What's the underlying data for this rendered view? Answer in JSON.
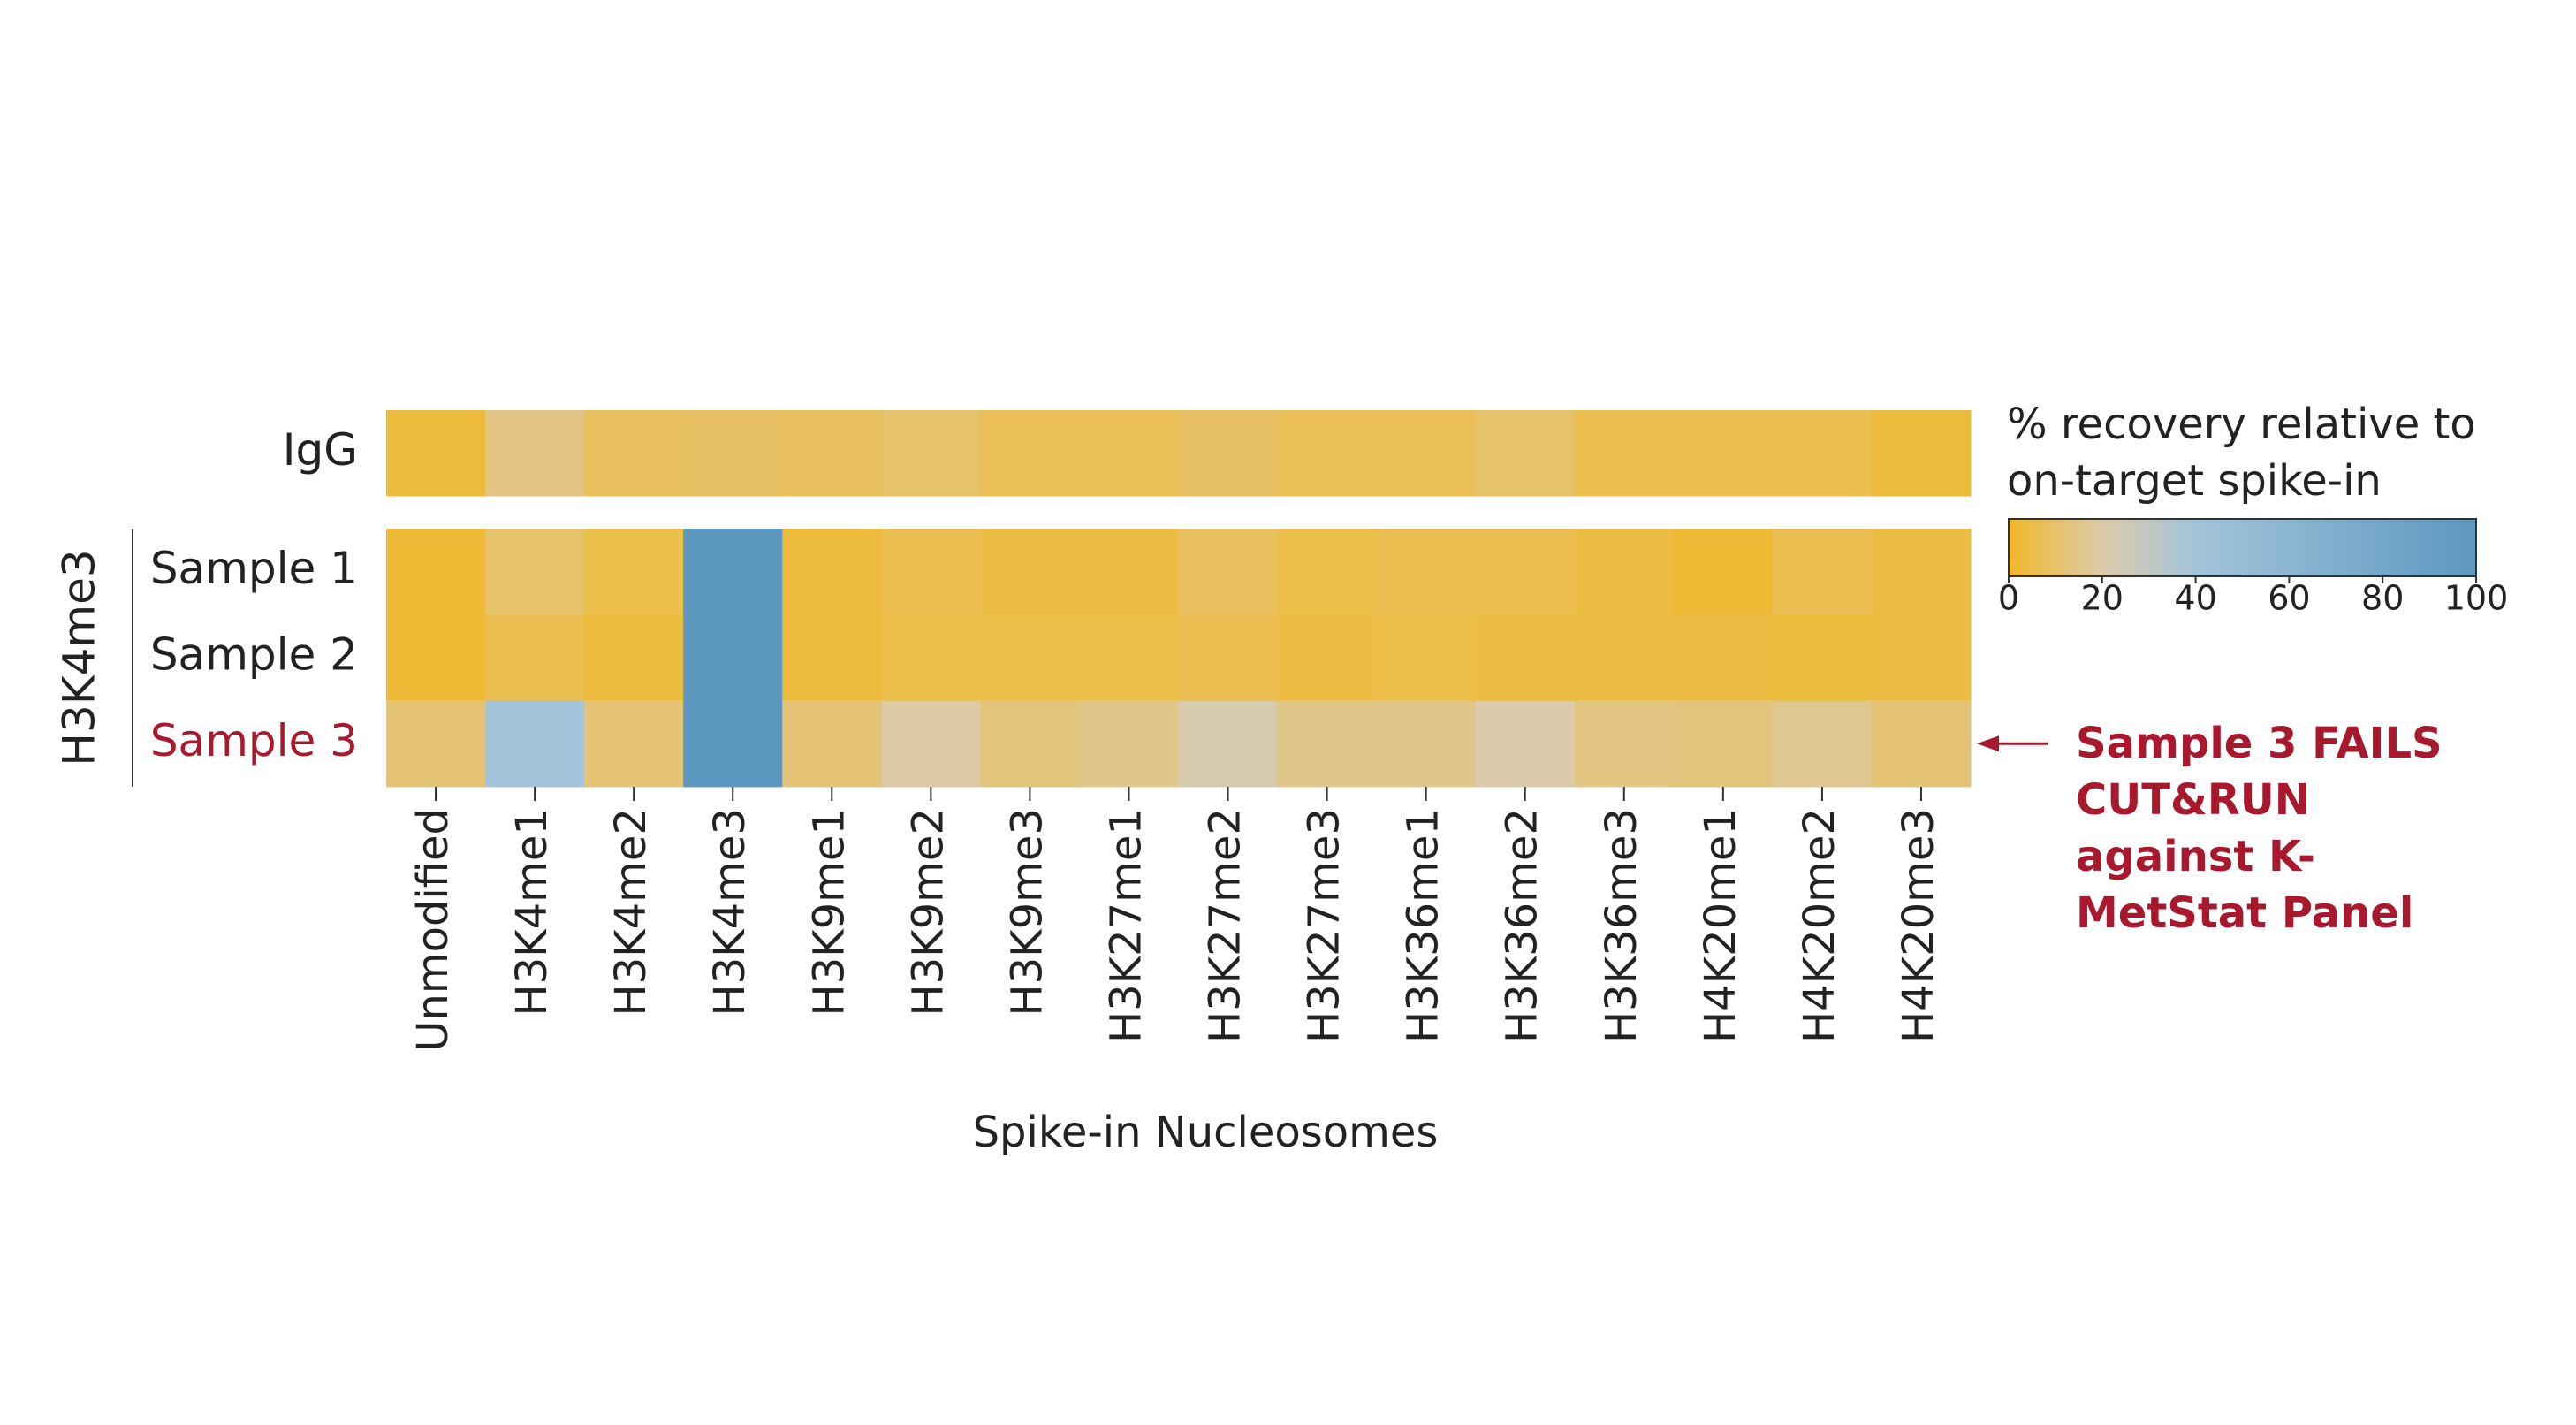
{
  "chart_data": {
    "type": "heatmap",
    "x_label": "Spike-in Nucleosomes",
    "categories": [
      "Unmodified",
      "H3K4me1",
      "H3K4me2",
      "H3K4me3",
      "H3K9me1",
      "H3K9me2",
      "H3K9me3",
      "H3K27me1",
      "H3K27me2",
      "H3K27me3",
      "H3K36me1",
      "H3K36me2",
      "H3K36me3",
      "H4K20me1",
      "H4K20me2",
      "H4K20me3"
    ],
    "panels": [
      {
        "rows": [
          {
            "label": "IgG",
            "values": [
              3,
              14,
              8,
              9,
              8,
              10,
              7,
              7,
              9,
              7,
              7,
              10,
              6,
              6,
              6,
              3
            ]
          }
        ]
      },
      {
        "group": "H3K4me3",
        "rows": [
          {
            "label": "Sample 1",
            "values": [
              2,
              10,
              5,
              100,
              3,
              6,
              4,
              4,
              8,
              5,
              6,
              6,
              4,
              2,
              6,
              4
            ]
          },
          {
            "label": "Sample 2",
            "values": [
              2,
              6,
              3,
              100,
              3,
              5,
              5,
              5,
              6,
              4,
              5,
              4,
              4,
              4,
              3,
              4
            ]
          },
          {
            "label": "Sample 3",
            "values": [
              12,
              40,
              12,
              100,
              12,
              19,
              13,
              15,
              22,
              15,
              15,
              20,
              14,
              13,
              16,
              12
            ],
            "color": "#a8192e",
            "annotation": "Sample 3 FAILS CUT&RUN against K-MetStat Panel"
          }
        ]
      }
    ],
    "colorbar": {
      "title": "% recovery relative to on-target spike-in",
      "clim": [
        0,
        100
      ],
      "ticks": [
        0,
        20,
        40,
        60,
        80,
        100
      ],
      "colorscale": [
        [
          0,
          "#f0b829"
        ],
        [
          20,
          "#dccbaa"
        ],
        [
          40,
          "#a3c4da"
        ],
        [
          100,
          "#5d98c0"
        ]
      ]
    }
  }
}
